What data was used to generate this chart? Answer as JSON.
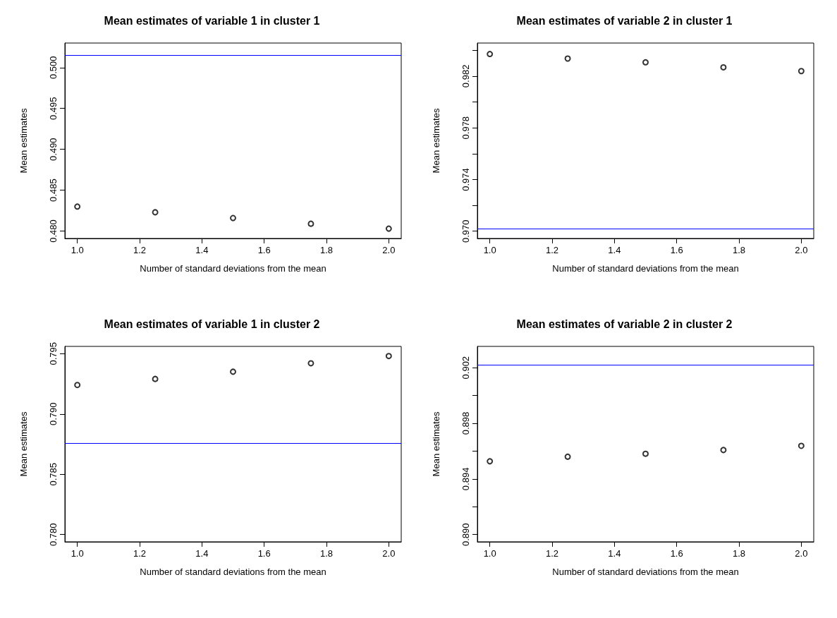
{
  "chart_data": [
    {
      "type": "scatter",
      "title": "Mean estimates of variable 1 in cluster 1",
      "xlabel": "Number of standard deviations from the mean",
      "ylabel": "Mean estimates",
      "x": [
        1,
        1.25,
        1.5,
        1.75,
        2
      ],
      "series": [
        {
          "color": "#000000",
          "values": [
            0.483,
            0.4823,
            0.4816,
            0.4809,
            0.4803
          ]
        }
      ],
      "xlim": [
        0.96,
        2.04
      ],
      "ylim": [
        0.4791,
        0.503
      ],
      "xticks": [
        {
          "value": 1,
          "label": "1.0"
        },
        {
          "value": 1.2,
          "label": "1.2"
        },
        {
          "value": 1.4,
          "label": "1.4"
        },
        {
          "value": 1.6,
          "label": "1.6"
        },
        {
          "value": 1.8,
          "label": "1.8"
        },
        {
          "value": 2,
          "label": "2.0"
        }
      ],
      "yticks": [
        {
          "value": 0.48,
          "label": "0.480"
        },
        {
          "value": 0.485,
          "label": "0.485"
        },
        {
          "value": 0.49,
          "label": "0.490"
        },
        {
          "value": 0.495,
          "label": "0.495"
        },
        {
          "value": 0.5,
          "label": "0.500"
        }
      ],
      "ref_lines": [
        {
          "axis": "y",
          "value": 0.5015,
          "color": "#0000ff"
        }
      ],
      "marker": "circle"
    },
    {
      "type": "scatter",
      "title": "Mean estimates of variable 2 in cluster 1",
      "xlabel": "Number of standard deviations from the mean",
      "ylabel": "Mean estimates",
      "x": [
        1,
        1.25,
        1.5,
        1.75,
        2
      ],
      "series": [
        {
          "color": "#000000",
          "values": [
            0.98371,
            0.98336,
            0.98307,
            0.98268,
            0.98239
          ]
        }
      ],
      "xlim": [
        0.96,
        2.04
      ],
      "ylim": [
        0.96944,
        0.98456
      ],
      "xticks": [
        {
          "value": 1,
          "label": "1.0"
        },
        {
          "value": 1.2,
          "label": "1.2"
        },
        {
          "value": 1.4,
          "label": "1.4"
        },
        {
          "value": 1.6,
          "label": "1.6"
        },
        {
          "value": 1.8,
          "label": "1.8"
        },
        {
          "value": 2,
          "label": "2.0"
        }
      ],
      "yticks": [
        {
          "value": 0.97,
          "label": "0.970"
        },
        {
          "value": 0.972,
          "label": null
        },
        {
          "value": 0.974,
          "label": "0.974"
        },
        {
          "value": 0.976,
          "label": null
        },
        {
          "value": 0.978,
          "label": "0.978"
        },
        {
          "value": 0.98,
          "label": null
        },
        {
          "value": 0.982,
          "label": "0.982"
        },
        {
          "value": 0.984,
          "label": null
        }
      ],
      "ref_lines": [
        {
          "axis": "y",
          "value": 0.97021,
          "color": "#0000ff"
        }
      ],
      "marker": "circle"
    },
    {
      "type": "scatter",
      "title": "Mean estimates of variable 1 in cluster 2",
      "xlabel": "Number of standard deviations from the mean",
      "ylabel": "Mean estimates",
      "x": [
        1,
        1.25,
        1.5,
        1.75,
        2
      ],
      "series": [
        {
          "color": "#000000",
          "values": [
            0.7924,
            0.7929,
            0.7935,
            0.7942,
            0.7948
          ]
        }
      ],
      "xlim": [
        0.96,
        2.04
      ],
      "ylim": [
        0.7794,
        0.7956
      ],
      "xticks": [
        {
          "value": 1,
          "label": "1.0"
        },
        {
          "value": 1.2,
          "label": "1.2"
        },
        {
          "value": 1.4,
          "label": "1.4"
        },
        {
          "value": 1.6,
          "label": "1.6"
        },
        {
          "value": 1.8,
          "label": "1.8"
        },
        {
          "value": 2,
          "label": "2.0"
        }
      ],
      "yticks": [
        {
          "value": 0.78,
          "label": "0.780"
        },
        {
          "value": 0.785,
          "label": "0.785"
        },
        {
          "value": 0.79,
          "label": "0.790"
        },
        {
          "value": 0.795,
          "label": "0.795"
        }
      ],
      "ref_lines": [
        {
          "axis": "y",
          "value": 0.7876,
          "color": "#0000ff"
        }
      ],
      "marker": "circle"
    },
    {
      "type": "scatter",
      "title": "Mean estimates of variable 2 in cluster 2",
      "xlabel": "Number of standard deviations from the mean",
      "ylabel": "Mean estimates",
      "x": [
        1,
        1.25,
        1.5,
        1.75,
        2
      ],
      "series": [
        {
          "color": "#000000",
          "values": [
            0.89527,
            0.8956,
            0.89581,
            0.89608,
            0.89638
          ]
        }
      ],
      "xlim": [
        0.96,
        2.04
      ],
      "ylim": [
        0.88948,
        0.90353
      ],
      "xticks": [
        {
          "value": 1,
          "label": "1.0"
        },
        {
          "value": 1.2,
          "label": "1.2"
        },
        {
          "value": 1.4,
          "label": "1.4"
        },
        {
          "value": 1.6,
          "label": "1.6"
        },
        {
          "value": 1.8,
          "label": "1.8"
        },
        {
          "value": 2,
          "label": "2.0"
        }
      ],
      "yticks": [
        {
          "value": 0.89,
          "label": "0.890"
        },
        {
          "value": 0.892,
          "label": null
        },
        {
          "value": 0.894,
          "label": "0.894"
        },
        {
          "value": 0.896,
          "label": null
        },
        {
          "value": 0.898,
          "label": "0.898"
        },
        {
          "value": 0.9,
          "label": null
        },
        {
          "value": 0.902,
          "label": "0.902"
        }
      ],
      "ref_lines": [
        {
          "axis": "y",
          "value": 0.90221,
          "color": "#0000ff"
        }
      ],
      "marker": "circle"
    }
  ]
}
